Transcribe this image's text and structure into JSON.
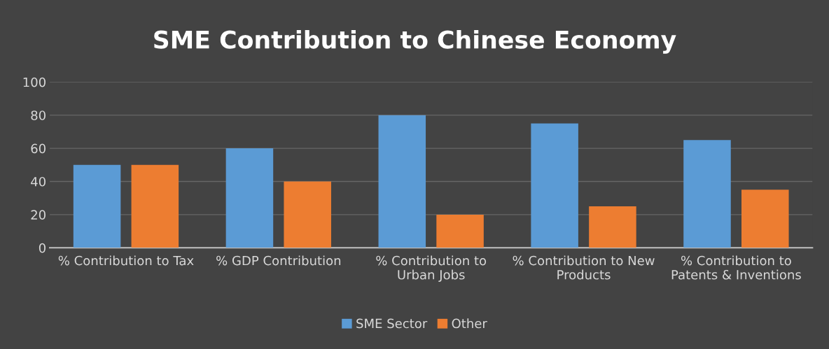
{
  "chart_data": {
    "type": "bar",
    "title": "SME Contribution to Chinese Economy",
    "categories": [
      "% Contribution to Tax",
      "% GDP Contribution",
      "% Contribution to Urban Jobs",
      "% Contribution to New Products",
      "% Contribution to Patents & Inventions"
    ],
    "series": [
      {
        "name": "SME Sector",
        "color": "#5b9bd5",
        "values": [
          50,
          60,
          80,
          75,
          65
        ]
      },
      {
        "name": "Other",
        "color": "#ed7d31",
        "values": [
          50,
          40,
          20,
          25,
          35
        ]
      }
    ],
    "ylim": [
      0,
      100
    ],
    "yticks": [
      0,
      20,
      40,
      60,
      80,
      100
    ],
    "grid": "y",
    "legend": "bottom"
  }
}
